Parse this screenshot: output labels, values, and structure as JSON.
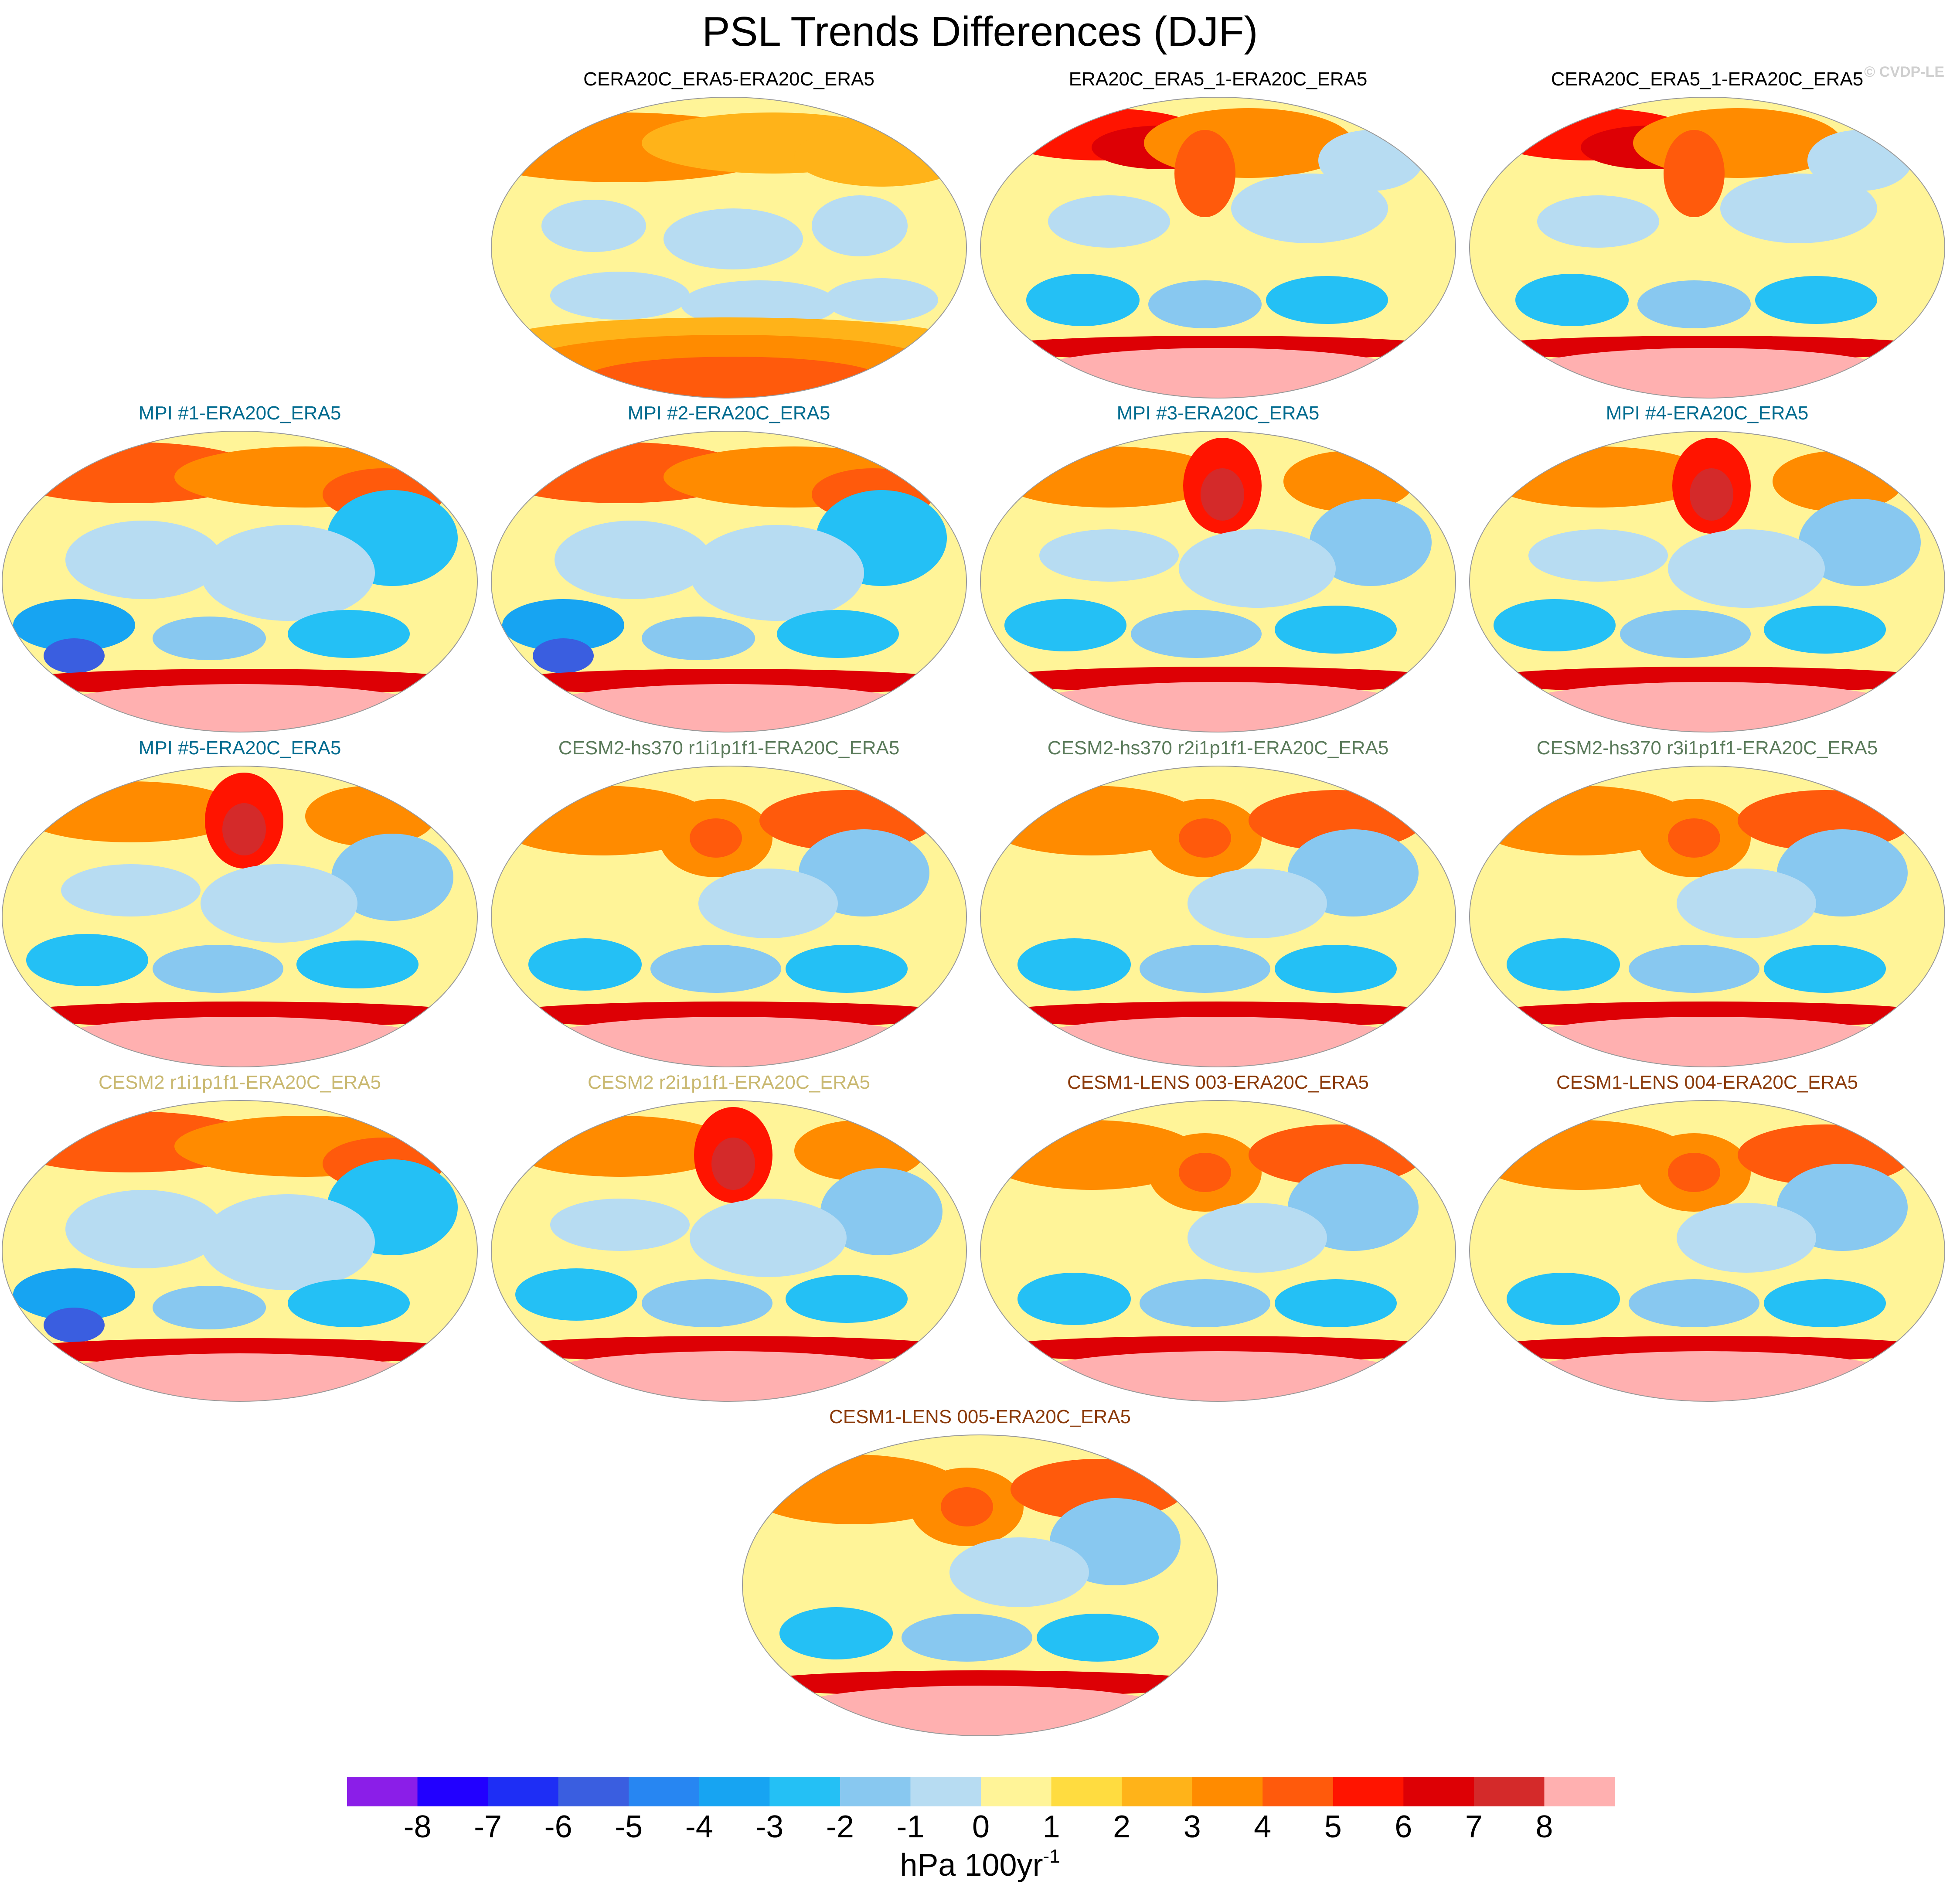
{
  "title": "PSL Trends Differences (DJF)",
  "credit": "© CVDP-LE",
  "colors": {
    "palette": [
      "#8b1ee8",
      "#2200ff",
      "#1e2ef5",
      "#3a5ee0",
      "#2786f2",
      "#17a4f2",
      "#24c0f5",
      "#88c8f0",
      "#b7dcf2",
      "#fff498",
      "#ffdc40",
      "#ffb319",
      "#ff8b00",
      "#ff5a0c",
      "#ff1400",
      "#dd0005",
      "#d42a2a",
      "#ffb0b0"
    ],
    "title_black": "#000000",
    "title_mpi": "#006b8f",
    "title_cesm2_hs": "#5a7a5a",
    "title_cesm2": "#c9b870",
    "title_cesm1": "#8b3a0a"
  },
  "panels": [
    {
      "title": "CERA20C_ERA5-ERA20C_ERA5",
      "color": "title_black",
      "pattern": 0
    },
    {
      "title": "ERA20C_ERA5_1-ERA20C_ERA5",
      "color": "title_black",
      "pattern": 1
    },
    {
      "title": "CERA20C_ERA5_1-ERA20C_ERA5",
      "color": "title_black",
      "pattern": 1
    },
    {
      "title": "MPI #1-ERA20C_ERA5",
      "color": "title_mpi",
      "pattern": 2
    },
    {
      "title": "MPI #2-ERA20C_ERA5",
      "color": "title_mpi",
      "pattern": 2
    },
    {
      "title": "MPI #3-ERA20C_ERA5",
      "color": "title_mpi",
      "pattern": 3
    },
    {
      "title": "MPI #4-ERA20C_ERA5",
      "color": "title_mpi",
      "pattern": 3
    },
    {
      "title": "MPI #5-ERA20C_ERA5",
      "color": "title_mpi",
      "pattern": 3
    },
    {
      "title": "CESM2-hs370 r1i1p1f1-ERA20C_ERA5",
      "color": "title_cesm2_hs",
      "pattern": 4
    },
    {
      "title": "CESM2-hs370 r2i1p1f1-ERA20C_ERA5",
      "color": "title_cesm2_hs",
      "pattern": 4
    },
    {
      "title": "CESM2-hs370 r3i1p1f1-ERA20C_ERA5",
      "color": "title_cesm2_hs",
      "pattern": 4
    },
    {
      "title": "CESM2 r1i1p1f1-ERA20C_ERA5",
      "color": "title_cesm2",
      "pattern": 2
    },
    {
      "title": "CESM2 r2i1p1f1-ERA20C_ERA5",
      "color": "title_cesm2",
      "pattern": 3
    },
    {
      "title": "CESM1-LENS 003-ERA20C_ERA5",
      "color": "title_cesm1",
      "pattern": 4
    },
    {
      "title": "CESM1-LENS 004-ERA20C_ERA5",
      "color": "title_cesm1",
      "pattern": 4
    },
    {
      "title": "CESM1-LENS 005-ERA20C_ERA5",
      "color": "title_cesm1",
      "pattern": 4
    }
  ],
  "colorbar": {
    "ticks": [
      "-8",
      "-7",
      "-6",
      "-5",
      "-4",
      "-3",
      "-2",
      "-1",
      "0",
      "1",
      "2",
      "3",
      "4",
      "5",
      "6",
      "7",
      "8"
    ],
    "units": "hPa 100yr",
    "units_exp": "-1"
  }
}
